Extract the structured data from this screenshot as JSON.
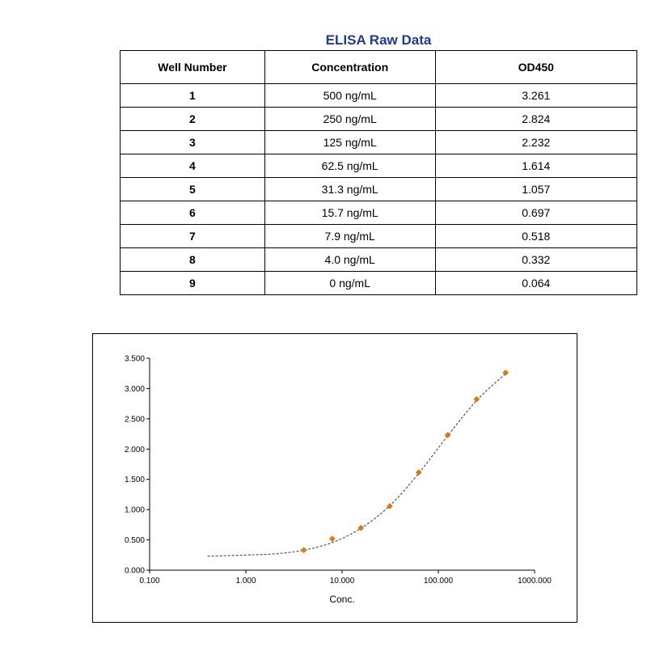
{
  "table": {
    "title": "ELISA Raw Data",
    "headers": [
      "Well Number",
      "Concentration",
      "OD450"
    ],
    "rows": [
      {
        "well": "1",
        "concentration": "500 ng/mL",
        "od450": "3.261"
      },
      {
        "well": "2",
        "concentration": "250 ng/mL",
        "od450": "2.824"
      },
      {
        "well": "3",
        "concentration": "125 ng/mL",
        "od450": "2.232"
      },
      {
        "well": "4",
        "concentration": "62.5 ng/mL",
        "od450": "1.614"
      },
      {
        "well": "5",
        "concentration": "31.3 ng/mL",
        "od450": "1.057"
      },
      {
        "well": "6",
        "concentration": "15.7 ng/mL",
        "od450": "0.697"
      },
      {
        "well": "7",
        "concentration": "7.9 ng/mL",
        "od450": "0.518"
      },
      {
        "well": "8",
        "concentration": "4.0 ng/mL",
        "od450": "0.332"
      },
      {
        "well": "9",
        "concentration": "0 ng/mL",
        "od450": "0.064"
      }
    ]
  },
  "chart_data": {
    "type": "scatter",
    "xlabel": "Conc.",
    "ylabel": "",
    "x_scale": "log",
    "xlim": [
      0.1,
      1000
    ],
    "ylim": [
      0,
      3.5
    ],
    "x_ticks": [
      "0.100",
      "1.000",
      "10.000",
      "100.000",
      "1000.000"
    ],
    "y_ticks": [
      "0.000",
      "0.500",
      "1.000",
      "1.500",
      "2.000",
      "2.500",
      "3.000",
      "3.500"
    ],
    "grid": false,
    "points": {
      "x": [
        500,
        250,
        125,
        62.5,
        31.3,
        15.7,
        7.9,
        4.0
      ],
      "y": [
        3.261,
        2.824,
        2.232,
        1.614,
        1.057,
        0.697,
        0.518,
        0.332
      ]
    },
    "fit_curve": {
      "style": "dashed",
      "x": [
        0.4,
        1,
        2,
        4,
        8,
        16,
        32,
        64,
        128,
        256,
        520
      ],
      "y": [
        0.23,
        0.25,
        0.27,
        0.33,
        0.46,
        0.7,
        1.08,
        1.62,
        2.24,
        2.82,
        3.27
      ]
    },
    "colors": {
      "points": "#e07b00",
      "curve": "#555555",
      "axis": "#000000"
    }
  }
}
